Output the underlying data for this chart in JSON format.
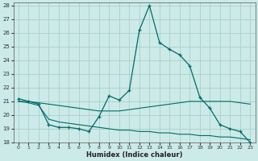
{
  "xlabel": "Humidex (Indice chaleur)",
  "background_color": "#cceae7",
  "grid_color": "#aacfcc",
  "line_color": "#006b6b",
  "xlim": [
    -0.5,
    23.5
  ],
  "ylim": [
    18,
    28.2
  ],
  "yticks": [
    18,
    19,
    20,
    21,
    22,
    23,
    24,
    25,
    26,
    27,
    28
  ],
  "xticks": [
    0,
    1,
    2,
    3,
    4,
    5,
    6,
    7,
    8,
    9,
    10,
    11,
    12,
    13,
    14,
    15,
    16,
    17,
    18,
    19,
    20,
    21,
    22,
    23
  ],
  "series1_x": [
    0,
    1,
    2,
    3,
    4,
    5,
    6,
    7,
    8,
    9,
    10,
    11,
    12,
    13,
    14,
    15,
    16,
    17,
    18,
    19,
    20,
    21,
    22,
    23
  ],
  "series1_y": [
    21.2,
    21.0,
    20.8,
    19.3,
    19.1,
    19.1,
    19.0,
    18.8,
    19.9,
    21.4,
    21.1,
    21.8,
    26.2,
    28.0,
    25.3,
    24.8,
    24.4,
    23.6,
    21.3,
    20.5,
    19.3,
    19.0,
    18.8,
    18.0
  ],
  "series2_x": [
    0,
    1,
    2,
    3,
    4,
    5,
    6,
    7,
    8,
    9,
    10,
    11,
    12,
    13,
    14,
    15,
    16,
    17,
    18,
    19,
    20,
    21,
    22,
    23
  ],
  "series2_y": [
    21.0,
    21.0,
    20.9,
    20.8,
    20.7,
    20.6,
    20.5,
    20.4,
    20.3,
    20.3,
    20.3,
    20.4,
    20.5,
    20.6,
    20.7,
    20.8,
    20.9,
    21.0,
    21.0,
    21.0,
    21.0,
    21.0,
    20.9,
    20.8
  ],
  "series3_x": [
    0,
    1,
    2,
    3,
    4,
    5,
    6,
    7,
    8,
    9,
    10,
    11,
    12,
    13,
    14,
    15,
    16,
    17,
    18,
    19,
    20,
    21,
    22,
    23
  ],
  "series3_y": [
    21.0,
    20.9,
    20.7,
    19.7,
    19.5,
    19.4,
    19.3,
    19.2,
    19.1,
    19.0,
    18.9,
    18.9,
    18.8,
    18.8,
    18.7,
    18.7,
    18.6,
    18.6,
    18.5,
    18.5,
    18.4,
    18.4,
    18.3,
    18.2
  ]
}
